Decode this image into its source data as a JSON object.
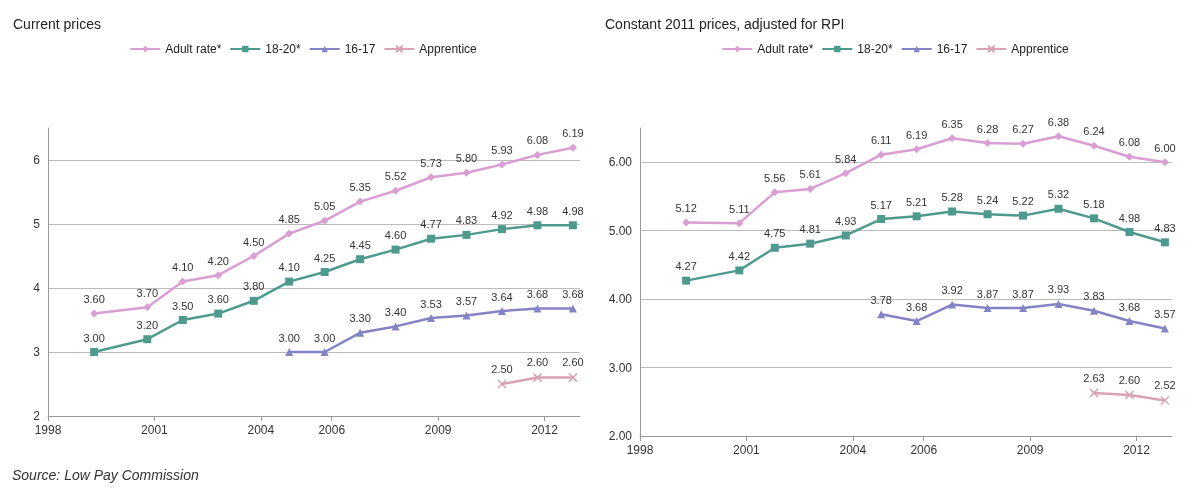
{
  "chart_data": [
    {
      "type": "line",
      "title": "Current prices",
      "annotations": [
        "Source: Low Pay Commission"
      ],
      "xlim": [
        1998,
        2013
      ],
      "xticks": [
        1998,
        2001,
        2004,
        2006,
        2009,
        2012
      ],
      "ylim": [
        2,
        6.5
      ],
      "yticks": [
        2,
        3,
        4,
        5,
        6
      ],
      "grid": "y",
      "legend": "top",
      "line_style": "solid",
      "series": [
        {
          "name": "Adult rate*",
          "color": "#d99fd3",
          "marker": "diamond",
          "x": [
            1999.3,
            2000.8,
            2001.8,
            2002.8,
            2003.8,
            2004.8,
            2005.8,
            2006.8,
            2007.8,
            2008.8,
            2009.8,
            2010.8,
            2011.8,
            2012.8
          ],
          "values": [
            3.6,
            3.7,
            4.1,
            4.2,
            4.5,
            4.85,
            5.05,
            5.35,
            5.52,
            5.73,
            5.8,
            5.93,
            6.08,
            6.19
          ],
          "value_labels": [
            "3.60",
            "3.70",
            "4.10",
            "4.20",
            "4.50",
            "4.85",
            "5.05",
            "5.35",
            "5.52",
            "5.73",
            "5.80",
            "5.93",
            "6.08",
            "6.19"
          ]
        },
        {
          "name": "18-20*",
          "color": "#4f9a8f",
          "marker": "square",
          "x": [
            1999.3,
            2000.8,
            2001.8,
            2002.8,
            2003.8,
            2004.8,
            2005.8,
            2006.8,
            2007.8,
            2008.8,
            2009.8,
            2010.8,
            2011.8,
            2012.8
          ],
          "values": [
            3.0,
            3.2,
            3.5,
            3.6,
            3.8,
            4.1,
            4.25,
            4.45,
            4.6,
            4.77,
            4.83,
            4.92,
            4.98,
            4.98
          ],
          "value_labels": [
            "3.00",
            "3.20",
            "3.50",
            "3.60",
            "3.80",
            "4.10",
            "4.25",
            "4.45",
            "4.60",
            "4.77",
            "4.83",
            "4.92",
            "4.98",
            "4.98"
          ]
        },
        {
          "name": "16-17",
          "color": "#8484c4",
          "marker": "triangle",
          "x": [
            2004.8,
            2005.8,
            2006.8,
            2007.8,
            2008.8,
            2009.8,
            2010.8,
            2011.8,
            2012.8
          ],
          "values": [
            3.0,
            3.0,
            3.3,
            3.4,
            3.53,
            3.57,
            3.64,
            3.68,
            3.68
          ],
          "value_labels": [
            "3.00",
            "3.00",
            "3.30",
            "3.40",
            "3.53",
            "3.57",
            "3.64",
            "3.68",
            "3.68"
          ]
        },
        {
          "name": "Apprentice",
          "color": "#d9a3b3",
          "marker": "cross",
          "x": [
            2010.8,
            2011.8,
            2012.8
          ],
          "values": [
            2.5,
            2.6,
            2.6
          ],
          "value_labels": [
            "2.50",
            "2.60",
            "2.60"
          ]
        }
      ]
    },
    {
      "type": "line",
      "title": "Constant 2011 prices, adjusted for RPI",
      "xlim": [
        1998,
        2013
      ],
      "xticks": [
        1998,
        2001,
        2004,
        2006,
        2009,
        2012
      ],
      "ylim": [
        2,
        6.5
      ],
      "yticks": [
        {
          "value": 2,
          "label": "2.00"
        },
        {
          "value": 3,
          "label": "3.00"
        },
        {
          "value": 4,
          "label": "4.00"
        },
        {
          "value": 5,
          "label": "5.00"
        },
        {
          "value": 6,
          "label": "6.00"
        }
      ],
      "grid": "y",
      "legend": "top",
      "line_style": "solid",
      "series": [
        {
          "name": "Adult rate*",
          "color": "#d99fd3",
          "marker": "diamond",
          "x": [
            1999.3,
            2000.8,
            2001.8,
            2002.8,
            2003.8,
            2004.8,
            2005.8,
            2006.8,
            2007.8,
            2008.8,
            2009.8,
            2010.8,
            2011.8,
            2012.8
          ],
          "values": [
            5.12,
            5.11,
            5.56,
            5.61,
            5.84,
            6.11,
            6.19,
            6.35,
            6.28,
            6.27,
            6.38,
            6.24,
            6.08,
            6.0
          ],
          "value_labels": [
            "5.12",
            "5.11",
            "5.56",
            "5.61",
            "5.84",
            "6.11",
            "6.19",
            "6.35",
            "6.28",
            "6.27",
            "6.38",
            "6.24",
            "6.08",
            "6.00"
          ]
        },
        {
          "name": "18-20*",
          "color": "#4f9a8f",
          "marker": "square",
          "x": [
            1999.3,
            2000.8,
            2001.8,
            2002.8,
            2003.8,
            2004.8,
            2005.8,
            2006.8,
            2007.8,
            2008.8,
            2009.8,
            2010.8,
            2011.8,
            2012.8
          ],
          "values": [
            4.27,
            4.42,
            4.75,
            4.81,
            4.93,
            5.17,
            5.21,
            5.28,
            5.24,
            5.22,
            5.32,
            5.18,
            4.98,
            4.83
          ],
          "value_labels": [
            "4.27",
            "4.42",
            "4.75",
            "4.81",
            "4.93",
            "5.17",
            "5.21",
            "5.28",
            "5.24",
            "5.22",
            "5.32",
            "5.18",
            "4.98",
            "4.83"
          ]
        },
        {
          "name": "16-17",
          "color": "#8484c4",
          "marker": "triangle",
          "x": [
            2004.8,
            2005.8,
            2006.8,
            2007.8,
            2008.8,
            2009.8,
            2010.8,
            2011.8,
            2012.8
          ],
          "values": [
            3.78,
            3.68,
            3.92,
            3.87,
            3.87,
            3.93,
            3.83,
            3.68,
            3.57
          ],
          "value_labels": [
            "3.78",
            "3.68",
            "3.92",
            "3.87",
            "3.87",
            "3.93",
            "3.83",
            "3.68",
            "3.57"
          ]
        },
        {
          "name": "Apprentice",
          "color": "#d9a3b3",
          "marker": "cross",
          "x": [
            2010.8,
            2011.8,
            2012.8
          ],
          "values": [
            2.63,
            2.6,
            2.52
          ],
          "value_labels": [
            "2.63",
            "2.60",
            "2.52"
          ]
        }
      ]
    }
  ]
}
